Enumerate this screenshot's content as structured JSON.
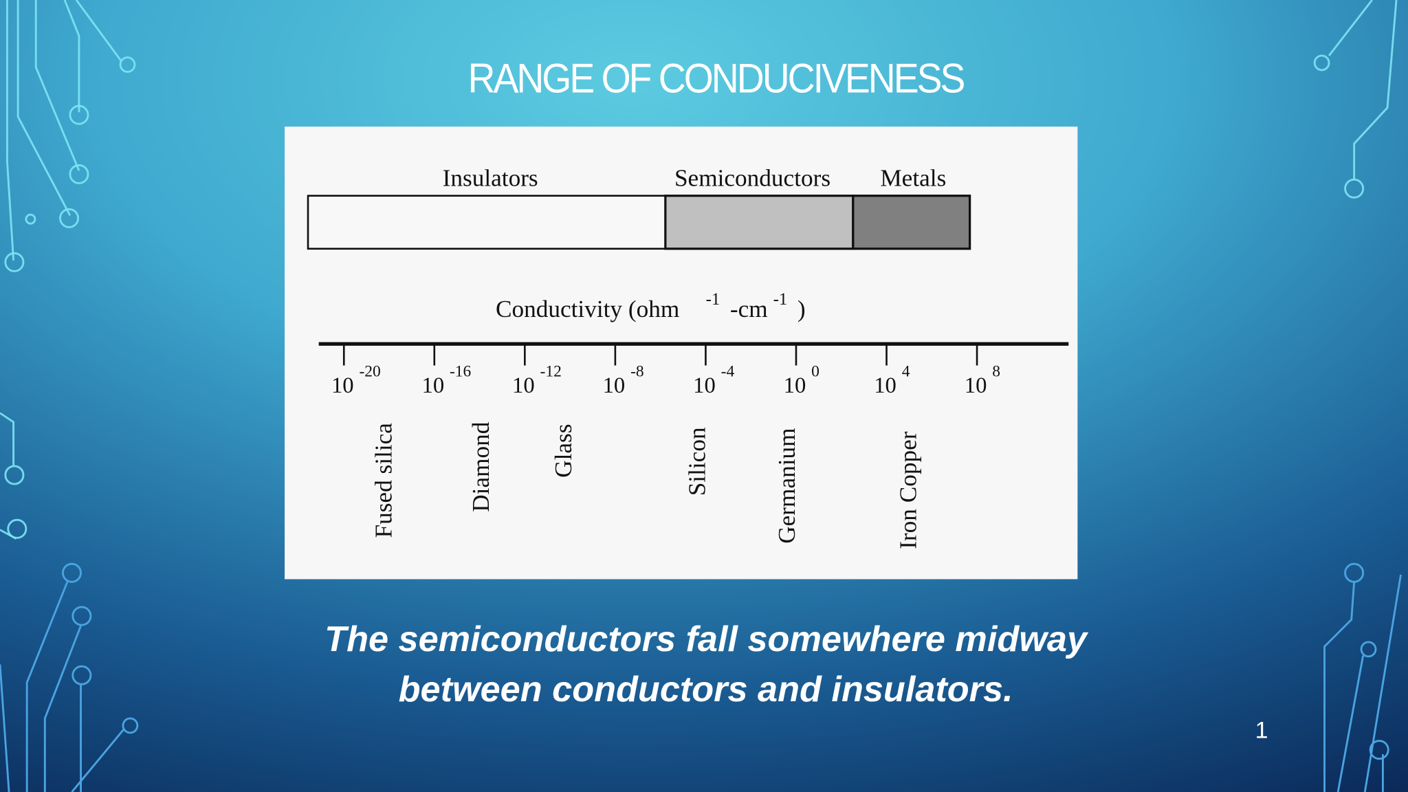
{
  "slide": {
    "title": "RANGE OF CONDUCIVENESS",
    "figure": {
      "bands": [
        "Insulators",
        "Semiconductors",
        "Metals"
      ],
      "axis_label": {
        "text": "Conductivity (ohm",
        "sup1": "-1",
        "mid": "-cm",
        "sup2": "-1",
        "end": ")"
      },
      "tick_base": "10",
      "tick_exponents": [
        -20,
        -16,
        -12,
        -8,
        -4,
        0,
        4,
        8
      ],
      "materials": [
        "Fused silica",
        "Diamond",
        "Glass",
        "Silicon",
        "Germanium",
        "Iron Copper"
      ]
    },
    "caption": [
      "The semiconductors fall somewhere midway",
      "between conductors and insulators."
    ],
    "page_number": 1
  }
}
